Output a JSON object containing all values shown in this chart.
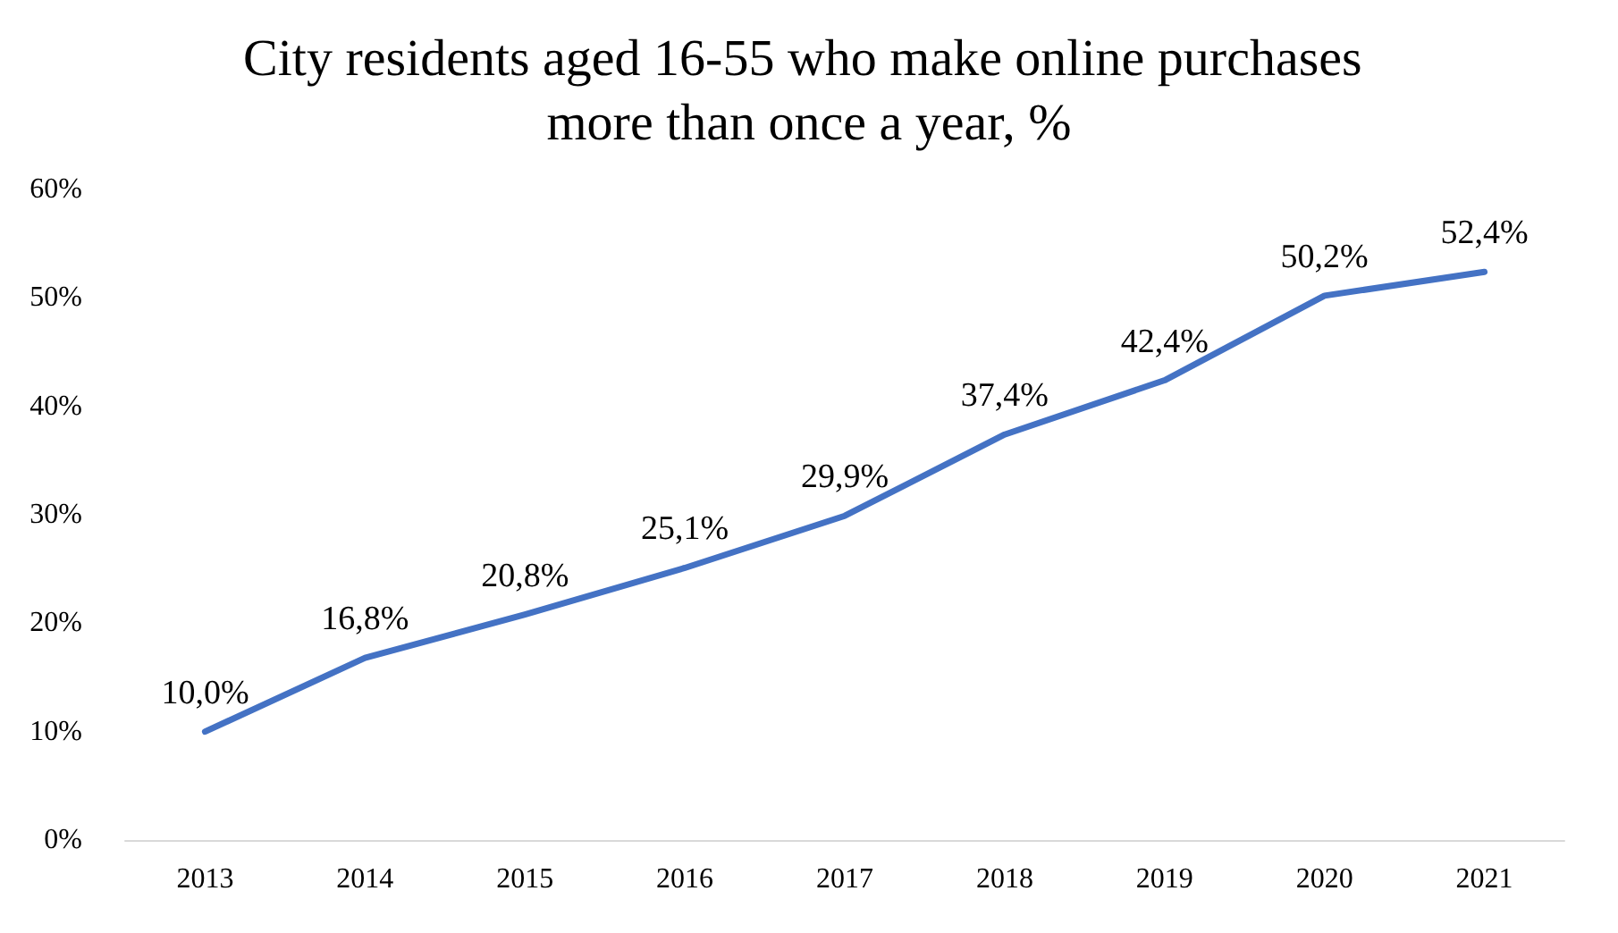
{
  "chart_data": {
    "type": "line",
    "title": "City residents aged 16-55 who make online purchases more than once a year, %",
    "categories": [
      "2013",
      "2014",
      "2015",
      "2016",
      "2017",
      "2018",
      "2019",
      "2020",
      "2021"
    ],
    "series": [
      {
        "color": "#4472c4",
        "values": [
          10.0,
          16.8,
          20.8,
          25.1,
          29.9,
          37.4,
          42.4,
          50.2,
          52.4
        ],
        "value_labels": [
          "10,0%",
          "16,8%",
          "20,8%",
          "25,1%",
          "29,9%",
          "37,4%",
          "42,4%",
          "50,2%",
          "52,4%"
        ]
      }
    ],
    "ylim": [
      0,
      60
    ],
    "yticks": [
      {
        "value": 0,
        "label": "0%"
      },
      {
        "value": 10,
        "label": "10%"
      },
      {
        "value": 20,
        "label": "20%"
      },
      {
        "value": 30,
        "label": "30%"
      },
      {
        "value": 40,
        "label": "40%"
      },
      {
        "value": 50,
        "label": "50%"
      },
      {
        "value": 60,
        "label": "60%"
      }
    ]
  }
}
